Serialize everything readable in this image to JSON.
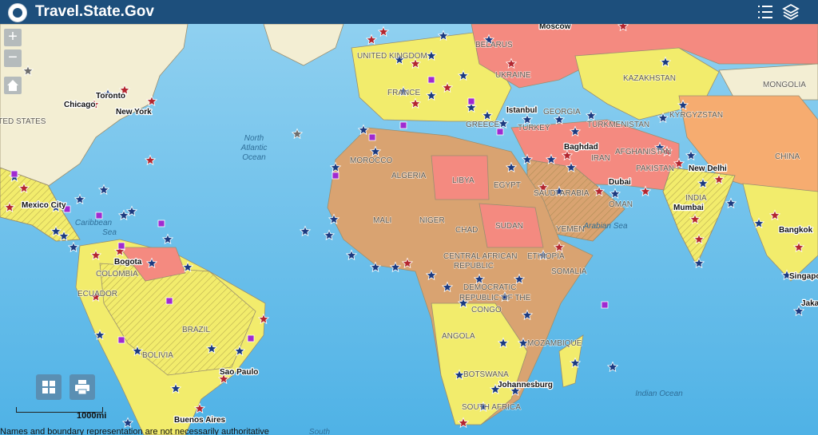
{
  "header": {
    "title": "Travel.State.Gov"
  },
  "controls": {
    "zoom_in": "+",
    "zoom_out": "−"
  },
  "map": {
    "labels": [
      "UNITED STATES",
      "Chicago",
      "Toronto",
      "New York",
      "North",
      "Atlantic",
      "Ocean",
      "Mexico City",
      "Caribbean",
      "Sea",
      "Bogota",
      "COLOMBIA",
      "ECUADOR",
      "BRAZIL",
      "BOLIVIA",
      "Sao Paulo",
      "Buenos Aires",
      "UNITED KINGDOM",
      "FRANCE",
      "MOROCCO",
      "ALGERIA",
      "LIBYA",
      "EGYPT",
      "MALI",
      "NIGER",
      "CHAD",
      "SUDAN",
      "CENTRAL AFRICAN",
      "REPUBLIC",
      "DEMOCRATIC",
      "REPUBLIC OF THE",
      "CONGO",
      "ANGOLA",
      "MOZAMBIQUE",
      "BOTSWANA",
      "Johannesburg",
      "SOUTH AFRICA",
      "Istanbul",
      "TURKEY",
      "GREECE",
      "UKRAINE",
      "BELARUS",
      "Moscow",
      "KAZAKHSTAN",
      "MONGOLIA",
      "CHINA",
      "GEORGIA",
      "TURKMENISTAN",
      "KYRGYZSTAN",
      "Baghdad",
      "IRAN",
      "AFGHANISTAN",
      "PAKISTAN",
      "New Delhi",
      "INDIA",
      "Mumbai",
      "SAUDI ARABIA",
      "Dubai",
      "OMAN",
      "YEMEN",
      "ETHIOPIA",
      "SOMALIA",
      "Arabian Sea",
      "Indian Ocean",
      "Bangkok",
      "Singapore",
      "Jakarta",
      "South"
    ]
  },
  "scale": "1000mi",
  "footer": "Names and boundary representation are not necessarily authoritative"
}
